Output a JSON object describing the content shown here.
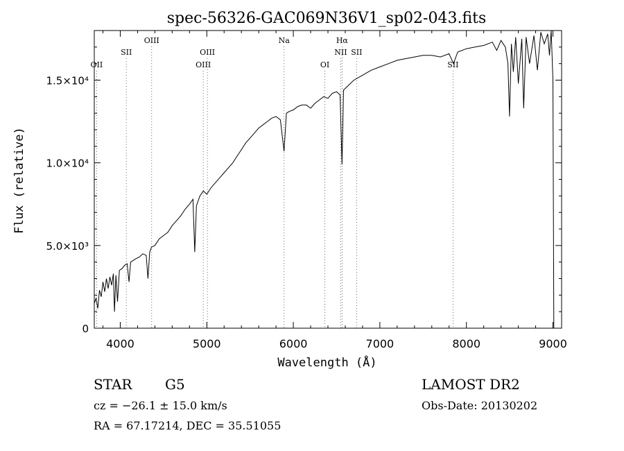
{
  "chart_data": {
    "type": "line",
    "title": "spec-56326-GAC069N36V1_sp02-043.fits",
    "xlabel": "Wavelength (Å)",
    "ylabel": "Flux (relative)",
    "xlim": [
      3700,
      9100
    ],
    "ylim": [
      0,
      18000
    ],
    "xticks": [
      {
        "value": 4000,
        "label": "4000"
      },
      {
        "value": 5000,
        "label": "5000"
      },
      {
        "value": 6000,
        "label": "6000"
      },
      {
        "value": 7000,
        "label": "7000"
      },
      {
        "value": 8000,
        "label": "8000"
      },
      {
        "value": 9000,
        "label": "9000"
      }
    ],
    "yticks": [
      {
        "value": 0,
        "label": "0"
      },
      {
        "value": 5000,
        "label": "5.0×10³"
      },
      {
        "value": 10000,
        "label": "1.0×10⁴"
      },
      {
        "value": 15000,
        "label": "1.5×10⁴"
      }
    ],
    "grid": false,
    "legend": "none",
    "line_color": "#000000",
    "series": [
      {
        "x": [
          3700,
          3720,
          3740,
          3760,
          3780,
          3800,
          3820,
          3840,
          3860,
          3880,
          3900,
          3920,
          3933,
          3950,
          3968,
          3990,
          4020,
          4050,
          4080,
          4101,
          4120,
          4150,
          4180,
          4220,
          4260,
          4300,
          4320,
          4340,
          4360,
          4400,
          4450,
          4500,
          4550,
          4600,
          4650,
          4700,
          4750,
          4800,
          4840,
          4861,
          4880,
          4920,
          4960,
          5000,
          5050,
          5100,
          5150,
          5200,
          5250,
          5300,
          5350,
          5400,
          5450,
          5500,
          5550,
          5600,
          5650,
          5700,
          5750,
          5800,
          5850,
          5893,
          5920,
          5950,
          6000,
          6050,
          6100,
          6150,
          6200,
          6250,
          6300,
          6350,
          6400,
          6450,
          6500,
          6540,
          6563,
          6580,
          6620,
          6700,
          6800,
          6900,
          7000,
          7100,
          7200,
          7300,
          7400,
          7500,
          7600,
          7700,
          7800,
          7850,
          7900,
          8000,
          8100,
          8200,
          8300,
          8350,
          8400,
          8450,
          8480,
          8498,
          8520,
          8542,
          8570,
          8600,
          8640,
          8662,
          8690,
          8730,
          8780,
          8820,
          8860,
          8900,
          8940,
          8960,
          8980,
          9000,
          9010
        ],
        "y": [
          1500,
          1800,
          1200,
          2300,
          1900,
          2800,
          2200,
          3000,
          2400,
          3100,
          2600,
          3300,
          1000,
          3200,
          1600,
          3500,
          3600,
          3800,
          3900,
          2800,
          4000,
          4100,
          4200,
          4300,
          4500,
          4400,
          3000,
          4600,
          4900,
          5000,
          5400,
          5600,
          5800,
          6200,
          6500,
          6800,
          7200,
          7500,
          7800,
          4600,
          7400,
          8000,
          8300,
          8100,
          8500,
          8800,
          9100,
          9400,
          9700,
          10000,
          10400,
          10800,
          11200,
          11500,
          11800,
          12100,
          12300,
          12500,
          12700,
          12800,
          12600,
          10700,
          13000,
          13100,
          13200,
          13400,
          13500,
          13500,
          13300,
          13600,
          13800,
          14000,
          13900,
          14200,
          14300,
          14100,
          9900,
          14400,
          14600,
          15000,
          15300,
          15600,
          15800,
          16000,
          16200,
          16300,
          16400,
          16500,
          16500,
          16400,
          16600,
          16000,
          16700,
          16900,
          17000,
          17100,
          17300,
          16800,
          17400,
          17000,
          16000,
          12800,
          17200,
          15500,
          17600,
          14800,
          17500,
          13300,
          17600,
          16000,
          17700,
          15600,
          17900,
          17200,
          17800,
          16500,
          18000,
          15000,
          0
        ]
      }
    ],
    "annotations": [
      {
        "label": "OII",
        "x": 3727,
        "row": 1
      },
      {
        "label": "SII",
        "x": 4070,
        "row": 2
      },
      {
        "label": "OIII",
        "x": 4363,
        "row": 3
      },
      {
        "label": "OIII",
        "x": 4959,
        "row": 1
      },
      {
        "label": "OIII",
        "x": 5007,
        "row": 2
      },
      {
        "label": "Na",
        "x": 5893,
        "row": 3
      },
      {
        "label": "OI",
        "x": 6364,
        "row": 1
      },
      {
        "label": "NII",
        "x": 6548,
        "row": 2
      },
      {
        "label": "Hα",
        "x": 6563,
        "row": 3
      },
      {
        "label": "SII",
        "x": 6731,
        "row": 2
      },
      {
        "label": "SII",
        "x": 7845,
        "row": 1
      }
    ]
  },
  "info": {
    "object": "STAR",
    "subclass": "G5",
    "survey": "LAMOST DR2",
    "cz": "cz = −26.1 ± 15.0 km/s",
    "obs_date": "Obs-Date: 20130202",
    "coords": "RA =  67.17214, DEC =  35.51055"
  }
}
